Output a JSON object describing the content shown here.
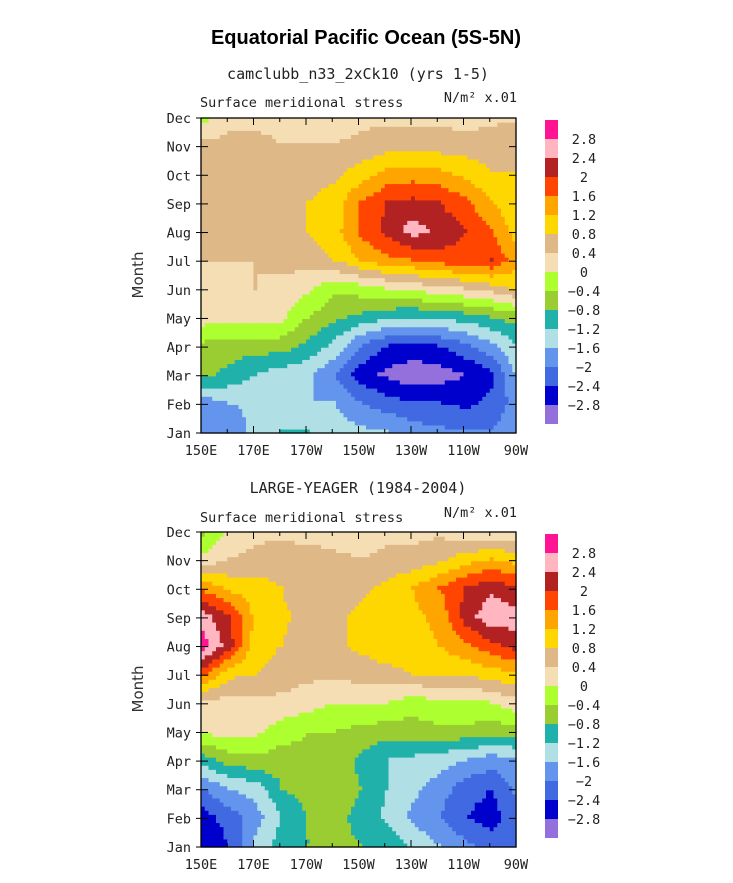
{
  "figure": {
    "title": "Equatorial Pacific Ocean (5S-5N)"
  },
  "legend": {
    "colors": [
      "#9370DB",
      "#0000CD",
      "#4169E1",
      "#6495ED",
      "#B0E0E6",
      "#20B2AA",
      "#9ACD32",
      "#ADFF2F",
      "#F5DEB3",
      "#DEB887",
      "#FFD700",
      "#FFA500",
      "#FF4500",
      "#B22222",
      "#FFB6C1",
      "#FF1493"
    ],
    "labels": [
      "-2.8",
      "-2.4",
      "-2",
      "-1.6",
      "-1.2",
      "-0.8",
      "-0.4",
      "0",
      "0.4",
      "0.8",
      "1.2",
      "1.6",
      "2",
      "2.4",
      "2.8"
    ]
  },
  "chart_data": [
    {
      "type": "heatmap",
      "title": "camclubb_n33_2xCk10 (yrs 1-5)",
      "left_label": "Surface meridional stress",
      "right_label": "N/m² x.01",
      "ylabel": "Month",
      "x_ticks": [
        "150E",
        "170E",
        "170W",
        "150W",
        "130W",
        "110W",
        "90W"
      ],
      "y_ticks": [
        "Jan",
        "Feb",
        "Mar",
        "Apr",
        "May",
        "Jun",
        "Jul",
        "Aug",
        "Sep",
        "Oct",
        "Nov",
        "Dec"
      ],
      "x_range_deg_east": [
        150,
        270
      ],
      "grid": [
        [
          -2.0,
          -2.0,
          -1.4,
          -1.2,
          -1.2,
          -1.4,
          -1.5,
          -1.6,
          -1.8,
          -1.9,
          -2.0,
          -2.0,
          -1.6
        ],
        [
          -1.8,
          -1.6,
          -1.5,
          -1.6,
          -1.6,
          -1.6,
          -2.0,
          -2.2,
          -2.4,
          -2.4,
          -2.5,
          -2.3,
          -1.8
        ],
        [
          -0.7,
          -0.9,
          -1.2,
          -1.4,
          -1.5,
          -2.0,
          -2.6,
          -2.9,
          -3.1,
          -3.0,
          -2.8,
          -2.5,
          -1.5
        ],
        [
          -0.5,
          -0.6,
          -0.6,
          -0.6,
          -0.9,
          -1.3,
          -2.0,
          -2.4,
          -2.5,
          -2.4,
          -2.1,
          -1.7,
          -1.2
        ],
        [
          0.2,
          0.2,
          0.2,
          0.1,
          -0.4,
          -0.7,
          -0.9,
          -1.1,
          -1.2,
          -1.1,
          -1.0,
          -0.8,
          -0.6
        ],
        [
          0.3,
          0.3,
          0.4,
          0.3,
          0.1,
          -0.3,
          -0.2,
          0.0,
          0.1,
          0.3,
          0.4,
          0.6,
          0.9
        ],
        [
          0.4,
          0.4,
          0.4,
          0.5,
          0.6,
          0.8,
          1.2,
          1.5,
          1.6,
          1.8,
          1.9,
          2.0,
          1.3
        ],
        [
          0.6,
          0.6,
          0.6,
          0.7,
          0.8,
          1.0,
          1.7,
          2.1,
          2.6,
          2.3,
          2.0,
          1.6,
          1.0
        ],
        [
          0.6,
          0.6,
          0.6,
          0.7,
          0.8,
          1.0,
          1.6,
          2.0,
          2.1,
          2.0,
          1.7,
          1.2,
          0.9
        ],
        [
          0.6,
          0.6,
          0.6,
          0.6,
          0.6,
          0.7,
          1.0,
          1.3,
          1.4,
          1.3,
          1.1,
          0.8,
          0.8
        ],
        [
          0.5,
          0.5,
          0.5,
          0.4,
          0.4,
          0.4,
          0.5,
          0.6,
          0.6,
          0.6,
          0.6,
          0.6,
          0.8
        ],
        [
          -0.2,
          0.3,
          0.3,
          0.3,
          0.2,
          0.2,
          0.3,
          0.3,
          0.3,
          0.3,
          0.2,
          0.3,
          0.3
        ]
      ]
    },
    {
      "type": "heatmap",
      "title": "LARGE-YEAGER (1984-2004)",
      "left_label": "Surface meridional stress",
      "right_label": "N/m² x.01",
      "ylabel": "Month",
      "x_ticks": [
        "150E",
        "170E",
        "170W",
        "150W",
        "130W",
        "110W",
        "90W"
      ],
      "y_ticks": [
        "Jan",
        "Feb",
        "Mar",
        "Apr",
        "May",
        "Jun",
        "Jul",
        "Aug",
        "Sep",
        "Oct",
        "Nov",
        "Dec"
      ],
      "x_range_deg_east": [
        150,
        270
      ],
      "grid": [
        [
          -2.8,
          -2.4,
          -1.5,
          -1.0,
          -0.8,
          -0.7,
          -0.8,
          -0.9,
          -1.3,
          -1.6,
          -1.9,
          -2.2,
          -2.0
        ],
        [
          -2.6,
          -2.2,
          -1.8,
          -1.2,
          -0.8,
          -0.7,
          -0.9,
          -1.3,
          -1.7,
          -2.0,
          -2.4,
          -2.6,
          -2.1
        ],
        [
          -2.0,
          -1.6,
          -1.4,
          -0.8,
          -0.6,
          -0.5,
          -0.8,
          -1.2,
          -1.5,
          -1.8,
          -2.2,
          -2.4,
          -1.9
        ],
        [
          -1.0,
          -0.6,
          -0.5,
          -0.6,
          -0.5,
          -0.5,
          -0.9,
          -1.2,
          -1.3,
          -1.4,
          -1.6,
          -1.8,
          -1.6
        ],
        [
          0.1,
          0.2,
          0.1,
          -0.2,
          -0.4,
          -0.4,
          -0.5,
          -0.6,
          -0.6,
          -0.5,
          -0.5,
          -0.6,
          -0.6
        ],
        [
          0.2,
          0.3,
          0.3,
          0.3,
          0.2,
          0.0,
          0.0,
          0.0,
          -0.2,
          -0.1,
          -0.1,
          0.0,
          0.3
        ],
        [
          1.8,
          0.9,
          0.8,
          0.6,
          0.5,
          0.5,
          0.6,
          0.7,
          0.8,
          0.9,
          0.9,
          1.0,
          1.2
        ],
        [
          3.0,
          2.2,
          1.0,
          0.8,
          0.6,
          0.7,
          0.9,
          1.0,
          1.0,
          1.2,
          1.5,
          1.9,
          2.2
        ],
        [
          2.6,
          2.0,
          1.1,
          0.9,
          0.6,
          0.7,
          0.9,
          1.0,
          1.1,
          1.3,
          2.2,
          2.7,
          2.6
        ],
        [
          1.5,
          1.1,
          1.0,
          0.8,
          0.5,
          0.5,
          0.7,
          0.9,
          1.2,
          1.6,
          2.0,
          2.3,
          2.0
        ],
        [
          0.1,
          0.4,
          0.5,
          0.6,
          0.6,
          0.5,
          0.4,
          0.5,
          0.5,
          0.7,
          1.0,
          1.2,
          1.0
        ],
        [
          -0.5,
          0.1,
          0.3,
          0.3,
          0.2,
          0.2,
          0.1,
          0.3,
          0.3,
          0.3,
          0.1,
          0.0,
          0.1
        ]
      ]
    }
  ]
}
